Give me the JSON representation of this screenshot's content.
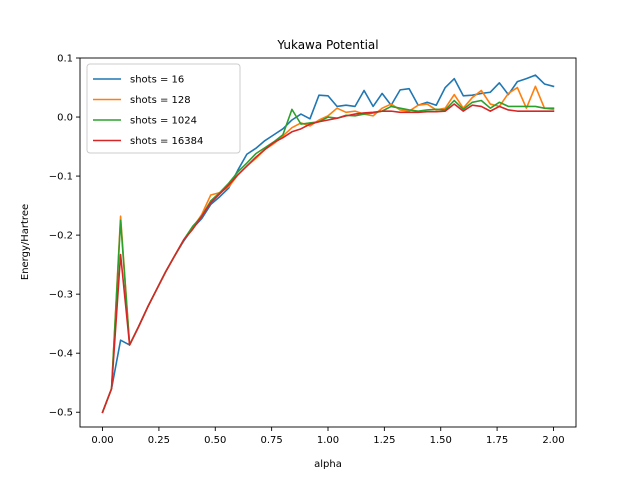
{
  "chart_data": {
    "type": "line",
    "title": "Yukawa Potential",
    "xlabel": "alpha",
    "ylabel": "Energy/Hartree",
    "xlim": [
      -0.1,
      2.1
    ],
    "ylim": [
      -0.525,
      0.1
    ],
    "xticks": [
      "0.00",
      "0.25",
      "0.50",
      "0.75",
      "1.00",
      "1.25",
      "1.50",
      "1.75",
      "2.00"
    ],
    "yticks": [
      "−0.5",
      "−0.4",
      "−0.3",
      "−0.2",
      "−0.1",
      "0.0",
      "0.1"
    ],
    "grid": false,
    "legend": "top-left",
    "x": [
      0.0,
      0.04,
      0.08,
      0.12,
      0.16,
      0.2,
      0.24,
      0.28,
      0.32,
      0.36,
      0.4,
      0.44,
      0.48,
      0.52,
      0.56,
      0.6,
      0.64,
      0.68,
      0.72,
      0.76,
      0.8,
      0.84,
      0.88,
      0.92,
      0.96,
      1.0,
      1.04,
      1.08,
      1.12,
      1.16,
      1.2,
      1.24,
      1.28,
      1.32,
      1.36,
      1.4,
      1.44,
      1.48,
      1.52,
      1.56,
      1.6,
      1.64,
      1.68,
      1.72,
      1.76,
      1.8,
      1.84,
      1.88,
      1.92,
      1.96,
      2.0
    ],
    "series": [
      {
        "name": "shots = 16",
        "color": "#1f77b4",
        "values": [
          -0.5,
          -0.46,
          -0.378,
          -0.386,
          -0.355,
          -0.322,
          -0.292,
          -0.262,
          -0.235,
          -0.21,
          -0.188,
          -0.172,
          -0.148,
          -0.135,
          -0.12,
          -0.09,
          -0.063,
          -0.053,
          -0.04,
          -0.03,
          -0.02,
          -0.005,
          0.005,
          -0.003,
          0.037,
          0.036,
          0.018,
          0.02,
          0.018,
          0.045,
          0.018,
          0.04,
          0.02,
          0.046,
          0.048,
          0.02,
          0.025,
          0.02,
          0.05,
          0.065,
          0.036,
          0.037,
          0.04,
          0.042,
          0.058,
          0.038,
          0.06,
          0.065,
          0.071,
          0.056,
          0.052
        ]
      },
      {
        "name": "shots = 128",
        "color": "#ff7f0e",
        "values": [
          -0.5,
          -0.46,
          -0.168,
          -0.386,
          -0.355,
          -0.322,
          -0.292,
          -0.262,
          -0.235,
          -0.208,
          -0.188,
          -0.165,
          -0.132,
          -0.128,
          -0.118,
          -0.098,
          -0.083,
          -0.07,
          -0.055,
          -0.045,
          -0.032,
          -0.018,
          -0.01,
          -0.015,
          -0.005,
          0.002,
          0.015,
          0.008,
          0.01,
          0.005,
          0.002,
          0.015,
          0.022,
          0.012,
          0.01,
          0.02,
          0.022,
          0.012,
          0.015,
          0.038,
          0.015,
          0.033,
          0.045,
          0.022,
          0.018,
          0.04,
          0.05,
          0.015,
          0.052,
          0.015,
          0.013
        ]
      },
      {
        "name": "shots = 1024",
        "color": "#2ca02c",
        "values": [
          -0.5,
          -0.46,
          -0.175,
          -0.386,
          -0.355,
          -0.322,
          -0.292,
          -0.262,
          -0.235,
          -0.208,
          -0.185,
          -0.168,
          -0.142,
          -0.128,
          -0.112,
          -0.093,
          -0.078,
          -0.062,
          -0.052,
          -0.042,
          -0.03,
          0.013,
          -0.012,
          -0.01,
          -0.008,
          0.0,
          -0.002,
          0.003,
          0.002,
          0.005,
          0.007,
          0.01,
          0.018,
          0.015,
          0.012,
          0.01,
          0.012,
          0.013,
          0.012,
          0.028,
          0.013,
          0.025,
          0.028,
          0.015,
          0.025,
          0.018,
          0.018,
          0.018,
          0.018,
          0.015,
          0.015
        ]
      },
      {
        "name": "shots = 16384",
        "color": "#d62728",
        "values": [
          -0.5,
          -0.46,
          -0.233,
          -0.386,
          -0.355,
          -0.322,
          -0.292,
          -0.262,
          -0.235,
          -0.208,
          -0.19,
          -0.168,
          -0.145,
          -0.13,
          -0.115,
          -0.098,
          -0.083,
          -0.068,
          -0.055,
          -0.043,
          -0.035,
          -0.025,
          -0.02,
          -0.012,
          -0.008,
          -0.005,
          -0.002,
          0.002,
          0.005,
          0.007,
          0.008,
          0.01,
          0.01,
          0.008,
          0.008,
          0.008,
          0.009,
          0.009,
          0.01,
          0.022,
          0.01,
          0.02,
          0.018,
          0.01,
          0.018,
          0.012,
          0.01,
          0.01,
          0.01,
          0.01,
          0.01
        ]
      }
    ]
  }
}
